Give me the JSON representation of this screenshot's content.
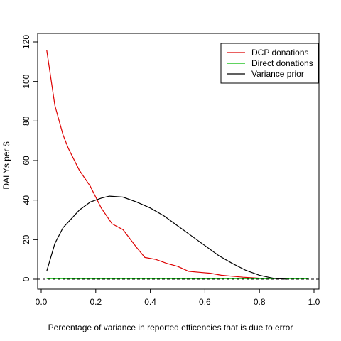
{
  "chart_data": {
    "type": "line",
    "xlabel": "Percentage of variance in reported efficencies that is due to error",
    "ylabel": "DALYs per $",
    "xlim": [
      0,
      1.0
    ],
    "ylim": [
      0,
      120
    ],
    "xticks": [
      0.0,
      0.2,
      0.4,
      0.6,
      0.8,
      1.0
    ],
    "xtick_labels": [
      "0.0",
      "0.2",
      "0.4",
      "0.6",
      "0.8",
      "1.0"
    ],
    "yticks": [
      0,
      20,
      40,
      60,
      80,
      100,
      120
    ],
    "ytick_labels": [
      "0",
      "20",
      "40",
      "60",
      "80",
      "100",
      "120"
    ],
    "legend_position": "top-right",
    "grid": false,
    "series": [
      {
        "name": "DCP donations",
        "color": "#dd0000",
        "x": [
          0.02,
          0.05,
          0.08,
          0.1,
          0.14,
          0.18,
          0.22,
          0.26,
          0.3,
          0.35,
          0.38,
          0.42,
          0.46,
          0.5,
          0.54,
          0.58,
          0.62,
          0.66,
          0.7,
          0.74,
          0.8,
          0.84
        ],
        "y": [
          116,
          88,
          73,
          66,
          55,
          47,
          36,
          28,
          25,
          16,
          11,
          10,
          8,
          6.5,
          4,
          3.5,
          3,
          2,
          1.5,
          1,
          0.5,
          0.3
        ]
      },
      {
        "name": "Direct donations",
        "color": "#00bb00",
        "x": [
          0.02,
          0.1,
          0.2,
          0.3,
          0.4,
          0.5,
          0.6,
          0.7,
          0.8,
          0.9,
          0.98
        ],
        "y": [
          0.3,
          0.3,
          0.3,
          0.3,
          0.3,
          0.3,
          0.3,
          0.3,
          0.3,
          0.3,
          0.3
        ]
      },
      {
        "name": "Variance prior",
        "color": "#000000",
        "x": [
          0.02,
          0.05,
          0.08,
          0.1,
          0.14,
          0.18,
          0.22,
          0.25,
          0.3,
          0.35,
          0.4,
          0.45,
          0.5,
          0.55,
          0.6,
          0.65,
          0.7,
          0.75,
          0.8,
          0.85,
          0.9
        ],
        "y": [
          4,
          18,
          26,
          29,
          35,
          39,
          41,
          42,
          41.5,
          39,
          36,
          32,
          27,
          22,
          17,
          12,
          8,
          4.5,
          2,
          0.5,
          0
        ]
      }
    ]
  }
}
